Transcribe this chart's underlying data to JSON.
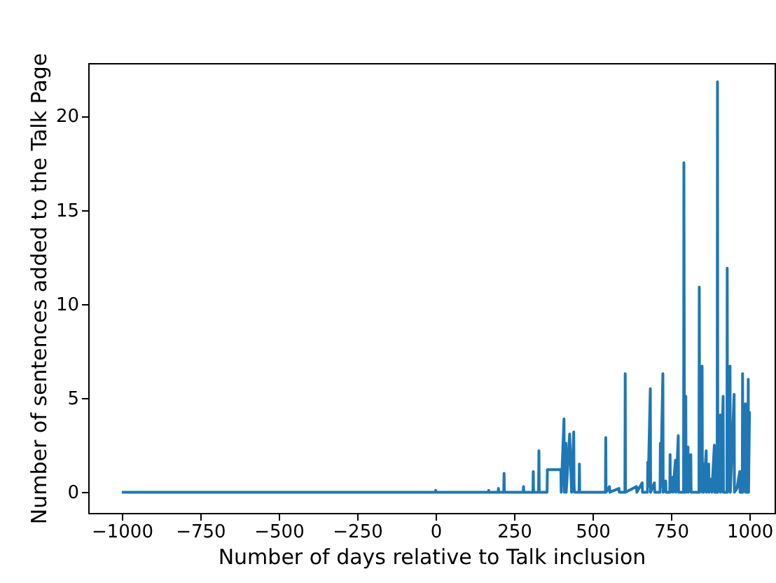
{
  "chart_data": {
    "type": "line",
    "xlabel": "Number of days relative to Talk inclusion",
    "ylabel": "Number of sentences added to the Talk Page",
    "x": [
      -1000,
      -1,
      0,
      1,
      168,
      169,
      170,
      199,
      200,
      201,
      217,
      218,
      219,
      279,
      280,
      281,
      310,
      311,
      312,
      328,
      329,
      330,
      355,
      356,
      387,
      399,
      400,
      409,
      410,
      415,
      416,
      427,
      433,
      440,
      441,
      442,
      457,
      458,
      459,
      541,
      542,
      543,
      554,
      555,
      584,
      585,
      603,
      604,
      605,
      640,
      641,
      658,
      659,
      675,
      676,
      677,
      684,
      685,
      697,
      698,
      715,
      716,
      717,
      724,
      725,
      733,
      734,
      746,
      747,
      748,
      755,
      756,
      764,
      765,
      768,
      773,
      774,
      790,
      791,
      793,
      797,
      798,
      804,
      805,
      813,
      814,
      839,
      840,
      841,
      849,
      850,
      853,
      854,
      862,
      863,
      870,
      871,
      879,
      880,
      888,
      889,
      897,
      898,
      899,
      907,
      908,
      916,
      917,
      928,
      929,
      930,
      938,
      939,
      951,
      952,
      960,
      969,
      970,
      977,
      978,
      979,
      987,
      988,
      995,
      996,
      997,
      1000
    ],
    "series": [
      {
        "color": "#1f77b4",
        "values": [
          0,
          0,
          0.1,
          0,
          0,
          0.1,
          0,
          0,
          0.2,
          0,
          0,
          1.0,
          0,
          0,
          0.3,
          0,
          0,
          1.1,
          0,
          0,
          2.2,
          0,
          0,
          1.2,
          1.2,
          1.2,
          0,
          3.9,
          0,
          2.6,
          0,
          3.1,
          0,
          3.2,
          0.5,
          0,
          0,
          1.5,
          0,
          0,
          2.9,
          0,
          0.3,
          0,
          0.2,
          0,
          0,
          6.3,
          0,
          0.3,
          0,
          0.5,
          0,
          0,
          1.6,
          0.3,
          5.5,
          0,
          0.5,
          0,
          0,
          2.6,
          0.3,
          6.3,
          0,
          0.6,
          0,
          0,
          2.0,
          0,
          0.8,
          0,
          1.7,
          0,
          0.9,
          3.0,
          0,
          0,
          17.5,
          0,
          5.1,
          0,
          2.4,
          0,
          2.0,
          0,
          0,
          10.9,
          0,
          6.7,
          0,
          1.5,
          0,
          2.2,
          0,
          1.5,
          0,
          0.7,
          0,
          2.5,
          0,
          0,
          21.8,
          0,
          4.1,
          0,
          5.1,
          0,
          0,
          11.9,
          0,
          6.7,
          0,
          5.2,
          0,
          0.2,
          1.1,
          0,
          0,
          6.3,
          0,
          4.7,
          0,
          0,
          6.0,
          0,
          4.3
        ]
      }
    ],
    "xlim": [
      -1107,
      1080
    ],
    "ylim": [
      -1.1,
      22.8
    ],
    "xticks": [
      {
        "value": -1000,
        "label": "−1000"
      },
      {
        "value": -750,
        "label": "−750"
      },
      {
        "value": -500,
        "label": "−500"
      },
      {
        "value": -250,
        "label": "−250"
      },
      0,
      250,
      500,
      750,
      1000
    ],
    "yticks": [
      0,
      5,
      10,
      15,
      20
    ],
    "grid": false,
    "line_style": "solid",
    "marker": "none"
  }
}
